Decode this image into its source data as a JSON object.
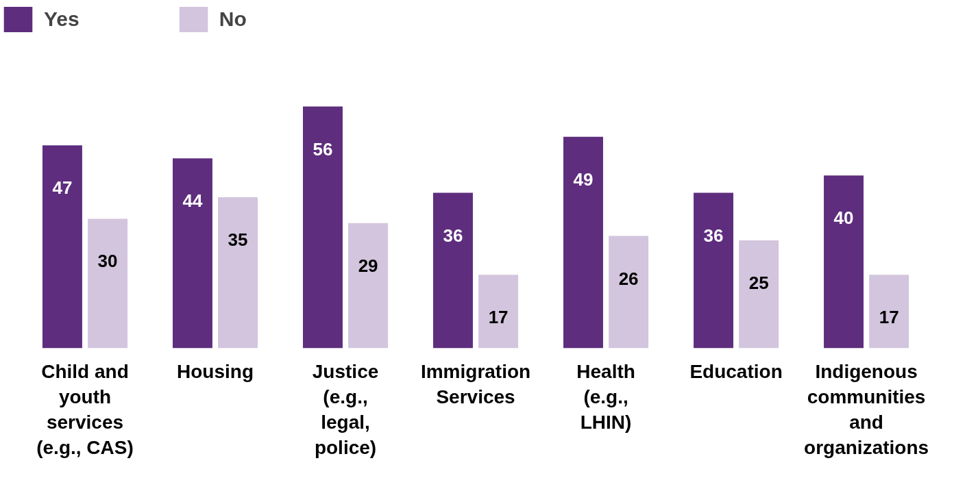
{
  "chart_data": {
    "type": "bar",
    "categories": [
      "Child and youth services (e.g., CAS)",
      "Housing",
      "Justice (e.g., legal, police)",
      "Immigration Services",
      "Health (e.g., LHIN)",
      "Education",
      "Indigenous communities and organizations"
    ],
    "series": [
      {
        "name": "Yes",
        "color": "#5e2d7e",
        "values": [
          47,
          44,
          56,
          36,
          49,
          36,
          40
        ]
      },
      {
        "name": "No",
        "color": "#d2c5dd",
        "values": [
          30,
          35,
          29,
          17,
          26,
          25,
          17
        ]
      }
    ],
    "data_labels": true,
    "legend": "top left",
    "grid": false
  }
}
